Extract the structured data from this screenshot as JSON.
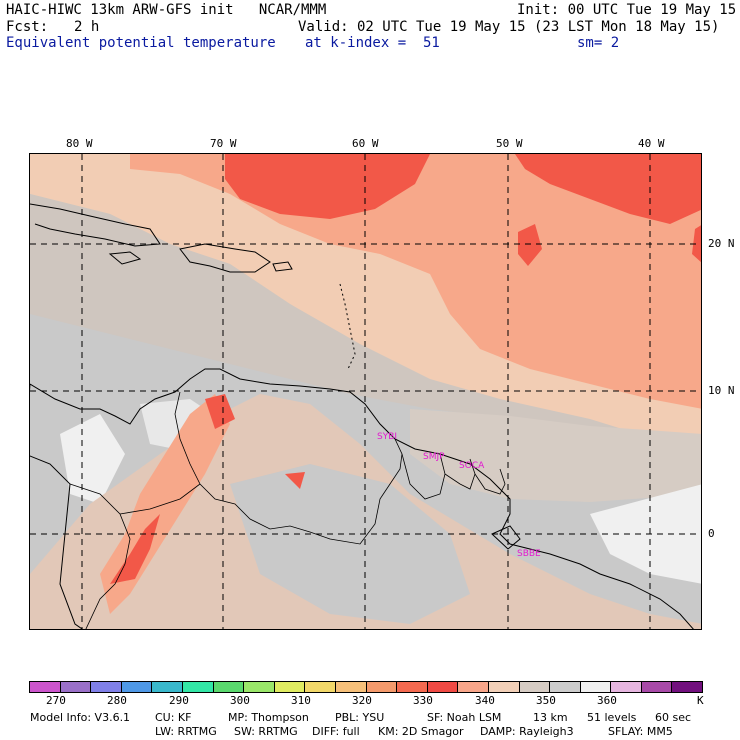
{
  "header": {
    "line1_left": "HAIC-HIWC 13km ARW-GFS init   NCAR/MMM",
    "line1_right": "Init: 00 UTC Tue 19 May 15",
    "line2_fcst_label": "Fcst:",
    "line2_fcst_value": "2 h",
    "line2_right": "Valid: 02 UTC Tue 19 May 15 (23 LST Mon 18 May 15)",
    "line3_field": "Equivalent potential temperature",
    "line3_level": "at k-index =  51",
    "line3_smooth": "sm= 2"
  },
  "map": {
    "lon_labels": [
      "80 W",
      "70 W",
      "60 W",
      "50 W",
      "40 W"
    ],
    "lat_labels": [
      "20 N",
      "10 N",
      "0"
    ],
    "stations": [
      "SYBI",
      "SMJP",
      "SOCA",
      "SBBE"
    ]
  },
  "colorbar": {
    "colors": [
      "#cc55cc",
      "#9a70c8",
      "#8080e8",
      "#4f98e6",
      "#3ab8cc",
      "#33e6a6",
      "#5ad86e",
      "#9ae66a",
      "#e0ec62",
      "#f2d86a",
      "#f6c07a",
      "#f49a6c",
      "#f46a50",
      "#f04a44",
      "#f8a68a",
      "#f2d0b8",
      "#d6ccc4",
      "#cccccc",
      "#f0f0f0",
      "#e6b6e0",
      "#a84aa8",
      "#72107e"
    ],
    "labels": [
      "270",
      "280",
      "290",
      "300",
      "310",
      "320",
      "330",
      "340",
      "350",
      "360"
    ],
    "unit": "K"
  },
  "model_info": {
    "line1": [
      "Model Info: V3.6.1",
      "CU: KF",
      "MP: Thompson",
      "PBL: YSU",
      "SF: Noah LSM",
      "13 km",
      "51 levels",
      "60 sec"
    ],
    "line2": [
      "LW: RRTMG",
      "SW: RRTMG",
      "DIFF: full",
      "KM: 2D Smagor",
      "DAMP: Rayleigh3",
      "SFLAY: MM5"
    ]
  }
}
